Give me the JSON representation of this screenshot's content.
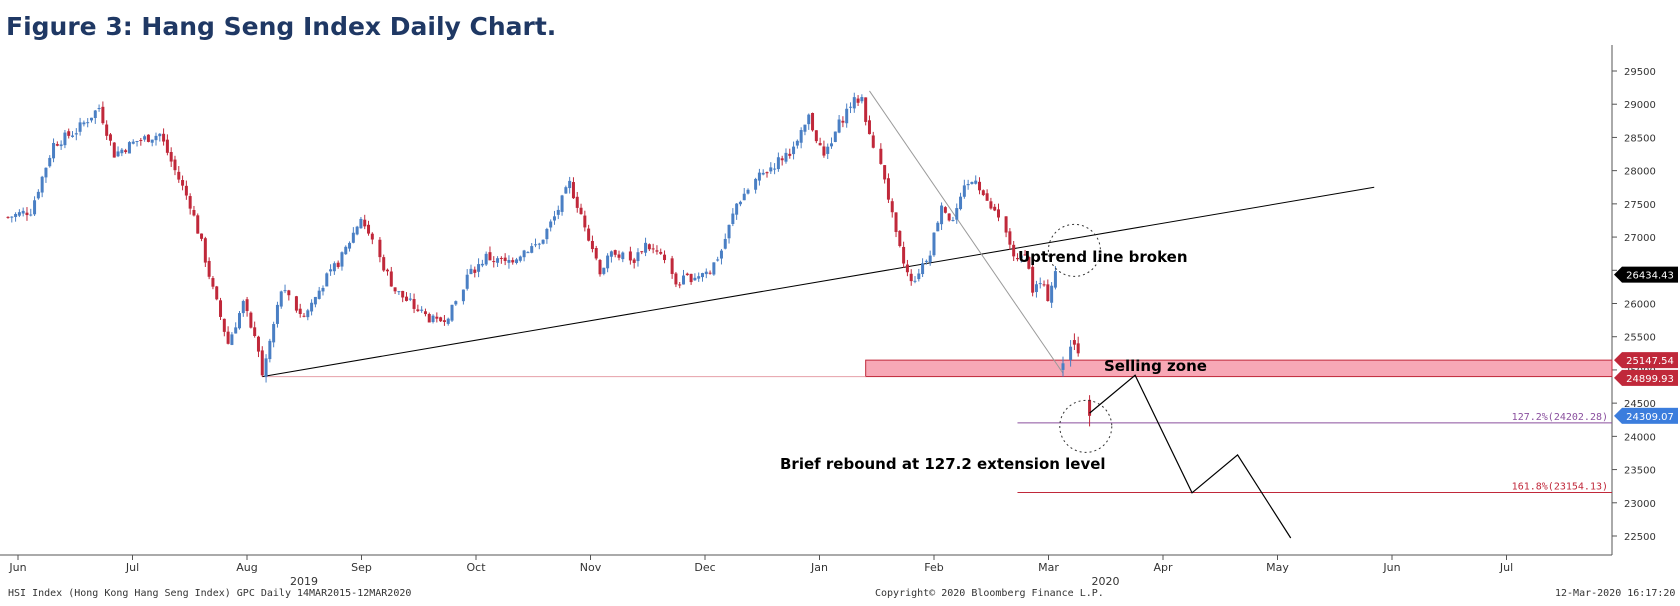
{
  "figure_title": "Figure 3: Hang Seng Index Daily Chart.",
  "footer": {
    "source": "HSI Index (Hong Kong Hang Seng Index) GPC  Daily 14MAR2015-12MAR2020",
    "copyright": "Copyright© 2020 Bloomberg Finance L.P.",
    "timestamp": "12-Mar-2020  16:17:20"
  },
  "annotations": {
    "uptrend": "Uptrend line broken",
    "selling_zone": "Selling zone",
    "rebound": "Brief rebound at 127.2 extension level"
  },
  "levels": {
    "ext_1272": "127.2%(24202.28)",
    "ext_1618": "161.8%(23154.13)"
  },
  "price_tags": {
    "last": "26434.43",
    "zone_top": "25147.54",
    "zone_bottom": "24899.93",
    "current": "24309.07"
  },
  "colors": {
    "up": "#4a7fc4",
    "down": "#c0283a",
    "zone_fill": "#f7a8b6",
    "zone_border": "#c0283a",
    "ext_1272": "#8a4f9e",
    "ext_1618": "#c0283a",
    "tag_last": "#000000",
    "tag_zone": "#c0283a",
    "tag_current": "#3b7ddd"
  },
  "chart_data": {
    "type": "candlestick",
    "y_axis_side": "right",
    "ylim": [
      22200,
      29800
    ],
    "y_ticks": [
      "29500",
      "29000",
      "28500",
      "28000",
      "27500",
      "27000",
      "26500",
      "26000",
      "25500",
      "25000",
      "24500",
      "24000",
      "23500",
      "23000",
      "22500"
    ],
    "x_ticks": [
      "Jun",
      "Jul",
      "Aug",
      "Sep",
      "Oct",
      "Nov",
      "Dec",
      "Jan",
      "Feb",
      "Mar",
      "Apr",
      "May",
      "Jun",
      "Jul"
    ],
    "year_labels": [
      {
        "label": "2019",
        "after": "Aug"
      },
      {
        "label": "2020",
        "after": "Mar"
      }
    ],
    "anchors": [
      {
        "d": 0,
        "v": 27300
      },
      {
        "d": 6,
        "v": 27400
      },
      {
        "d": 12,
        "v": 28400
      },
      {
        "d": 18,
        "v": 28600
      },
      {
        "d": 24,
        "v": 28950
      },
      {
        "d": 28,
        "v": 28250
      },
      {
        "d": 34,
        "v": 28450
      },
      {
        "d": 40,
        "v": 28550
      },
      {
        "d": 44,
        "v": 28000
      },
      {
        "d": 48,
        "v": 27500
      },
      {
        "d": 51,
        "v": 26900
      },
      {
        "d": 54,
        "v": 26200
      },
      {
        "d": 58,
        "v": 25400
      },
      {
        "d": 62,
        "v": 26000
      },
      {
        "d": 66,
        "v": 25300
      },
      {
        "d": 67,
        "v": 24900
      },
      {
        "d": 72,
        "v": 26200
      },
      {
        "d": 78,
        "v": 25800
      },
      {
        "d": 83,
        "v": 26300
      },
      {
        "d": 88,
        "v": 26700
      },
      {
        "d": 93,
        "v": 27300
      },
      {
        "d": 97,
        "v": 26800
      },
      {
        "d": 102,
        "v": 26200
      },
      {
        "d": 108,
        "v": 25900
      },
      {
        "d": 113,
        "v": 25700
      },
      {
        "d": 117,
        "v": 25900
      },
      {
        "d": 121,
        "v": 26400
      },
      {
        "d": 126,
        "v": 26700
      },
      {
        "d": 131,
        "v": 26600
      },
      {
        "d": 136,
        "v": 26800
      },
      {
        "d": 140,
        "v": 26900
      },
      {
        "d": 144,
        "v": 27300
      },
      {
        "d": 148,
        "v": 27800
      },
      {
        "d": 152,
        "v": 27200
      },
      {
        "d": 156,
        "v": 26500
      },
      {
        "d": 160,
        "v": 26800
      },
      {
        "d": 164,
        "v": 26600
      },
      {
        "d": 168,
        "v": 26900
      },
      {
        "d": 172,
        "v": 26700
      },
      {
        "d": 176,
        "v": 26300
      },
      {
        "d": 180,
        "v": 26400
      },
      {
        "d": 185,
        "v": 26500
      },
      {
        "d": 188,
        "v": 26800
      },
      {
        "d": 192,
        "v": 27500
      },
      {
        "d": 196,
        "v": 27800
      },
      {
        "d": 200,
        "v": 28000
      },
      {
        "d": 204,
        "v": 28200
      },
      {
        "d": 208,
        "v": 28400
      },
      {
        "d": 211,
        "v": 28800
      },
      {
        "d": 215,
        "v": 28200
      },
      {
        "d": 219,
        "v": 28700
      },
      {
        "d": 222,
        "v": 29000
      },
      {
        "d": 225,
        "v": 29100
      },
      {
        "d": 227,
        "v": 28500
      },
      {
        "d": 229,
        "v": 28200
      },
      {
        "d": 231,
        "v": 27900
      },
      {
        "d": 234,
        "v": 27000
      },
      {
        "d": 236,
        "v": 26600
      },
      {
        "d": 238,
        "v": 26300
      },
      {
        "d": 240,
        "v": 26500
      },
      {
        "d": 243,
        "v": 26800
      },
      {
        "d": 246,
        "v": 27500
      },
      {
        "d": 249,
        "v": 27200
      },
      {
        "d": 252,
        "v": 27700
      },
      {
        "d": 255,
        "v": 27900
      },
      {
        "d": 258,
        "v": 27500
      },
      {
        "d": 261,
        "v": 27300
      },
      {
        "d": 264,
        "v": 26900
      },
      {
        "d": 266,
        "v": 26600
      },
      {
        "d": 268,
        "v": 26800
      },
      {
        "d": 270,
        "v": 26200
      },
      {
        "d": 272,
        "v": 26300
      },
      {
        "d": 274,
        "v": 26100
      },
      {
        "d": 276,
        "v": 26500
      }
    ],
    "late_candles": [
      {
        "d": 278,
        "o": 25000,
        "h": 25200,
        "l": 24900,
        "c": 25100
      },
      {
        "d": 280,
        "o": 25150,
        "h": 25450,
        "l": 25050,
        "c": 25350
      },
      {
        "d": 281,
        "o": 25450,
        "h": 25550,
        "l": 25300,
        "c": 25380
      },
      {
        "d": 282,
        "o": 25400,
        "h": 25500,
        "l": 25200,
        "c": 25250
      },
      {
        "d": 285,
        "o": 24550,
        "h": 24620,
        "l": 24150,
        "c": 24309
      }
    ],
    "trendline": {
      "from": {
        "d": 67,
        "v": 24900
      },
      "to": {
        "d": 360,
        "v": 27750
      }
    },
    "fib_leg": {
      "from": {
        "d": 227,
        "v": 29200
      },
      "to": {
        "d": 278,
        "v": 24950
      }
    },
    "selling_zone": {
      "d_start": 226,
      "top": 25147.54,
      "bottom": 24899.93
    },
    "ext_1272": 24202.28,
    "ext_1618": 23154.13,
    "projection": [
      {
        "d": 285,
        "v": 24350
      },
      {
        "d": 297,
        "v": 24920
      },
      {
        "d": 312,
        "v": 23150
      },
      {
        "d": 324,
        "v": 23720
      },
      {
        "d": 338,
        "v": 22470
      }
    ],
    "circles": [
      {
        "d": 281,
        "v": 26800
      },
      {
        "d": 284,
        "v": 24150
      }
    ]
  }
}
